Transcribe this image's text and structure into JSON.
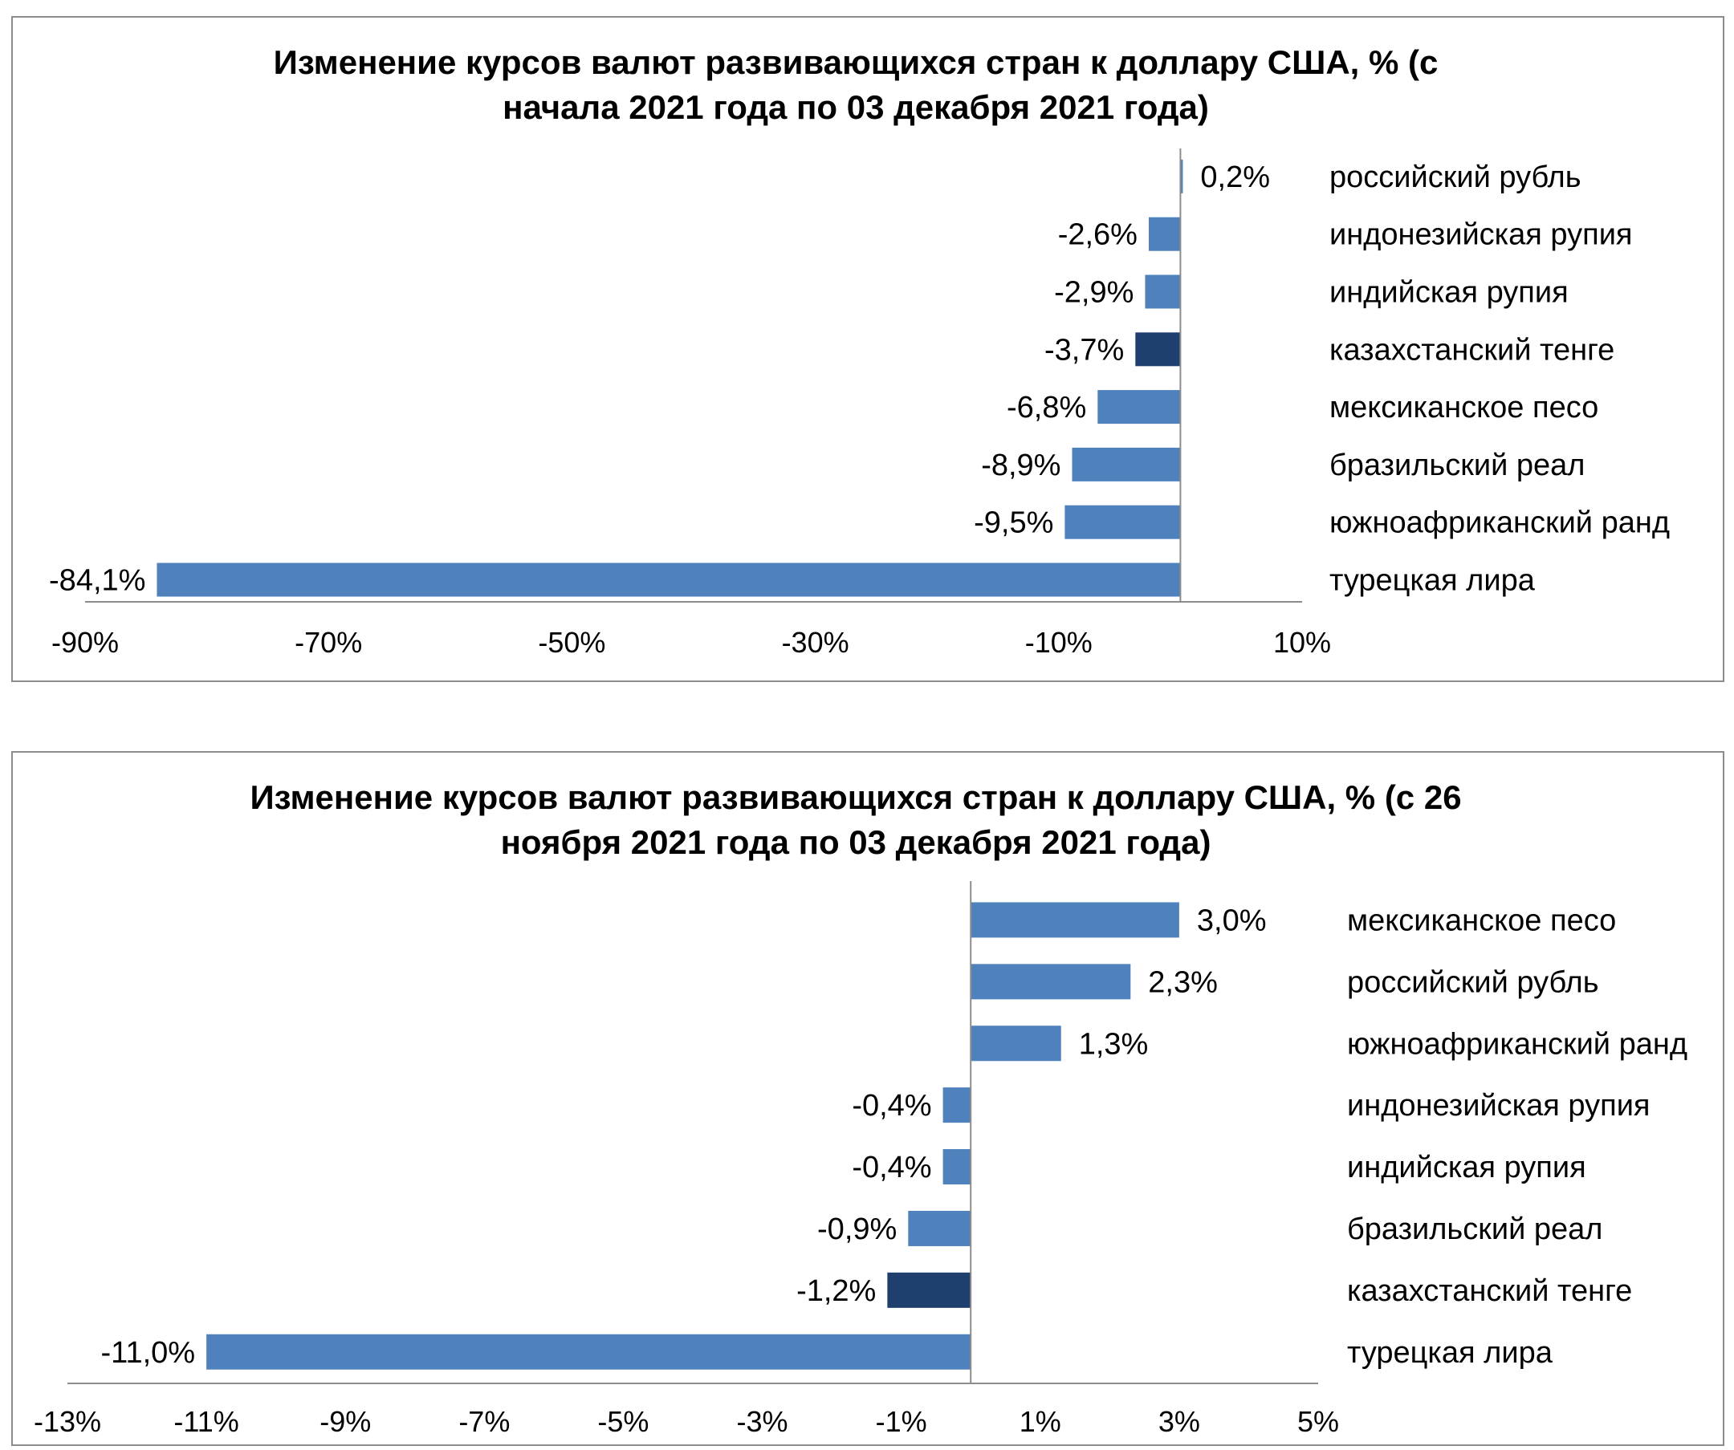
{
  "colors": {
    "bar": "#4f81bd",
    "bar_highlight": "#1f3f6e",
    "axis": "#8c8c8c"
  },
  "chart_data": [
    {
      "type": "bar",
      "orientation": "horizontal",
      "title_lines": [
        "Изменение курсов валют развивающихся стран к доллару США, % (с",
        "начала 2021 года по 03 декабря 2021 года)"
      ],
      "categories": [
        "российский рубль",
        "индонезийская рупия",
        "индийская рупия",
        "казахстанский тенге",
        "мексиканское песо",
        "бразильский реал",
        "южноафриканский ранд",
        "турецкая лира"
      ],
      "values": [
        0.2,
        -2.6,
        -2.9,
        -3.7,
        -6.8,
        -8.9,
        -9.5,
        -84.1
      ],
      "value_labels": [
        "0,2%",
        "-2,6%",
        "-2,9%",
        "-3,7%",
        "-6,8%",
        "-8,9%",
        "-9,5%",
        "-84,1%"
      ],
      "highlight": "казахстанский тенге",
      "xlim": [
        -90,
        10
      ],
      "xticks": [
        -90,
        -70,
        -50,
        -30,
        -10,
        10
      ],
      "xtick_labels": [
        "-90%",
        "-70%",
        "-50%",
        "-30%",
        "-10%",
        "10%"
      ],
      "grid": false
    },
    {
      "type": "bar",
      "orientation": "horizontal",
      "title_lines": [
        "Изменение курсов валют развивающихся стран к доллару США, % (с 26",
        "ноября 2021 года по 03 декабря 2021 года)"
      ],
      "categories": [
        "мексиканское песо",
        "российский рубль",
        "южноафриканский ранд",
        "индонезийская рупия",
        "индийская рупия",
        "бразильский реал",
        "казахстанский тенге",
        "турецкая лира"
      ],
      "values": [
        3.0,
        2.3,
        1.3,
        -0.4,
        -0.4,
        -0.9,
        -1.2,
        -11.0
      ],
      "value_labels": [
        "3,0%",
        "2,3%",
        "1,3%",
        "-0,4%",
        "-0,4%",
        "-0,9%",
        "-1,2%",
        "-11,0%"
      ],
      "highlight": "казахстанский тенге",
      "xlim": [
        -13,
        5
      ],
      "xticks": [
        -13,
        -11,
        -9,
        -7,
        -5,
        -3,
        -1,
        1,
        3,
        5
      ],
      "xtick_labels": [
        "-13%",
        "-11%",
        "-9%",
        "-7%",
        "-5%",
        "-3%",
        "-1%",
        "1%",
        "3%",
        "5%"
      ],
      "grid": false
    }
  ]
}
